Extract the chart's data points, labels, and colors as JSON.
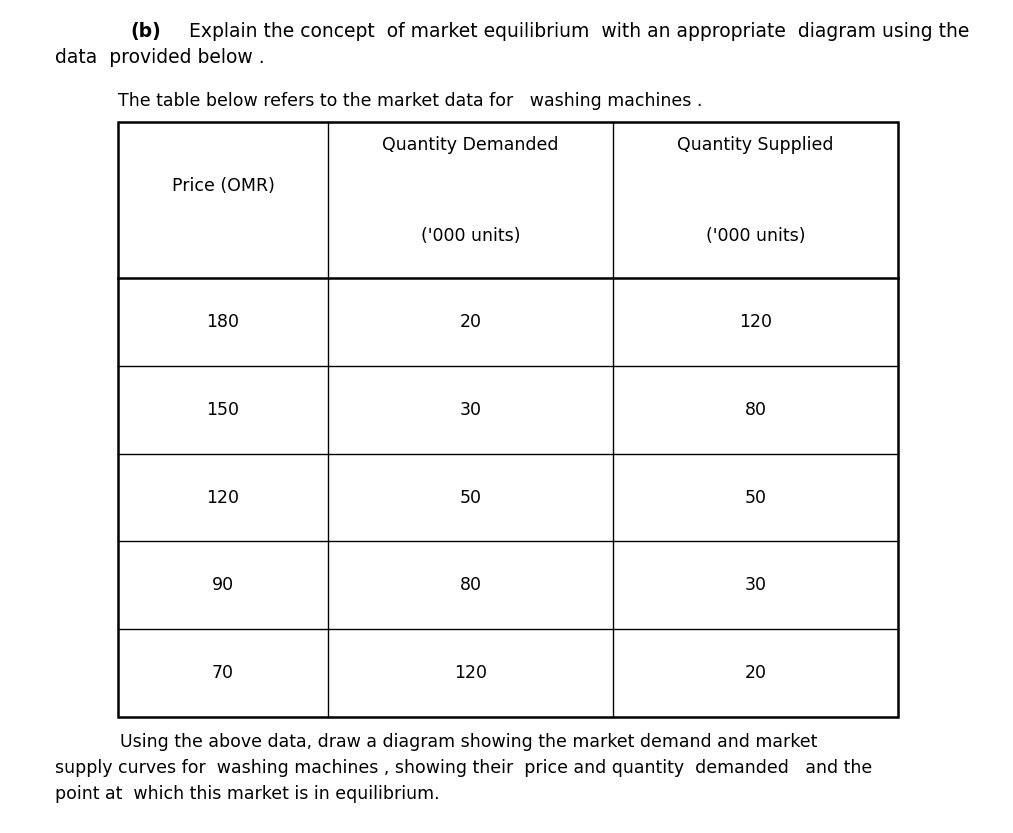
{
  "title_bold": "(b)",
  "title_rest": "    Explain the concept  of market equilibrium  with an appropriate  diagram using the",
  "title_line2": "data  provided below .",
  "subtitle": "The table below refers to the market data for   washing machines .",
  "col_header1": "Quantity Demanded",
  "col_header2": "Quantity Supplied",
  "price_label": "Price (OMR)",
  "units_label": "('000 units)",
  "rows": [
    [
      180,
      20,
      120
    ],
    [
      150,
      30,
      80
    ],
    [
      120,
      50,
      50
    ],
    [
      90,
      80,
      30
    ],
    [
      70,
      120,
      20
    ]
  ],
  "footer_line1": "Using the above data, draw a diagram showing the market demand and market",
  "footer_line2": "supply curves for  washing machines , showing their  price and quantity  demanded   and the",
  "footer_line3": "point at  which this market is in equilibrium.",
  "bg_color": "#ffffff",
  "text_color": "#000000",
  "table_line_color": "#000000",
  "title_fontsize": 13.5,
  "body_fontsize": 12.5,
  "table_fontsize": 12.5
}
